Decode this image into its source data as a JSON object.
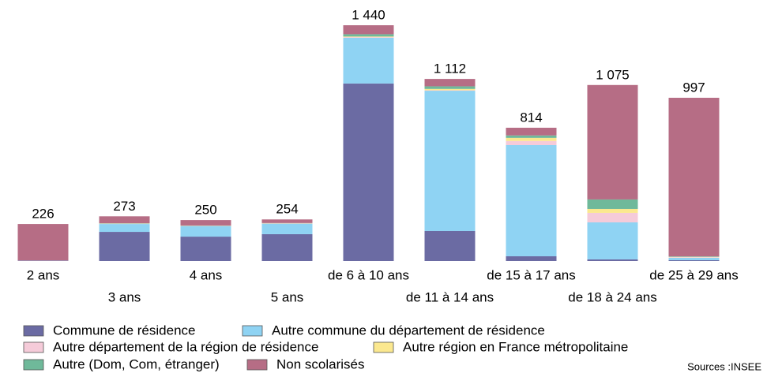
{
  "chart_data": {
    "type": "stacked_bar",
    "categories": [
      "2 ans",
      "3 ans",
      "4 ans",
      "5 ans",
      "de 6 à 10 ans",
      "de 11 à 14 ans",
      "de 15 à 17 ans",
      "de 18 à 24 ans",
      "de 25 à 29 ans"
    ],
    "series": [
      {
        "name": "Commune de résidence",
        "color": "#6b6ba3",
        "values": [
          2,
          178,
          149,
          164,
          1084,
          183,
          29,
          10,
          5
        ]
      },
      {
        "name": "Autre commune du département de résidence",
        "color": "#8fd3f3",
        "values": [
          1,
          48,
          63,
          63,
          279,
          857,
          679,
          226,
          15
        ]
      },
      {
        "name": "Autre département de la région de résidence",
        "color": "#f5cbd9",
        "values": [
          0,
          2,
          2,
          2,
          4,
          3,
          25,
          58,
          3
        ]
      },
      {
        "name": "Autre région en France métropolitaine",
        "color": "#fbe88f",
        "values": [
          0,
          1,
          1,
          1,
          4,
          8,
          19,
          24,
          2
        ]
      },
      {
        "name": "Autre (Dom, Com, étranger)",
        "color": "#6fb99a",
        "values": [
          0,
          2,
          2,
          2,
          14,
          16,
          15,
          58,
          3
        ]
      },
      {
        "name": "Non scolarisés",
        "color": "#b66d85",
        "values": [
          223,
          42,
          33,
          22,
          55,
          45,
          47,
          699,
          969
        ]
      }
    ],
    "totals": [
      226,
      273,
      250,
      254,
      1440,
      1112,
      814,
      1075,
      997
    ],
    "value_labels": [
      "226",
      "273",
      "250",
      "254",
      "1 440",
      "1 112",
      "814",
      "1 075",
      "997"
    ],
    "source": "Sources :INSEE"
  }
}
